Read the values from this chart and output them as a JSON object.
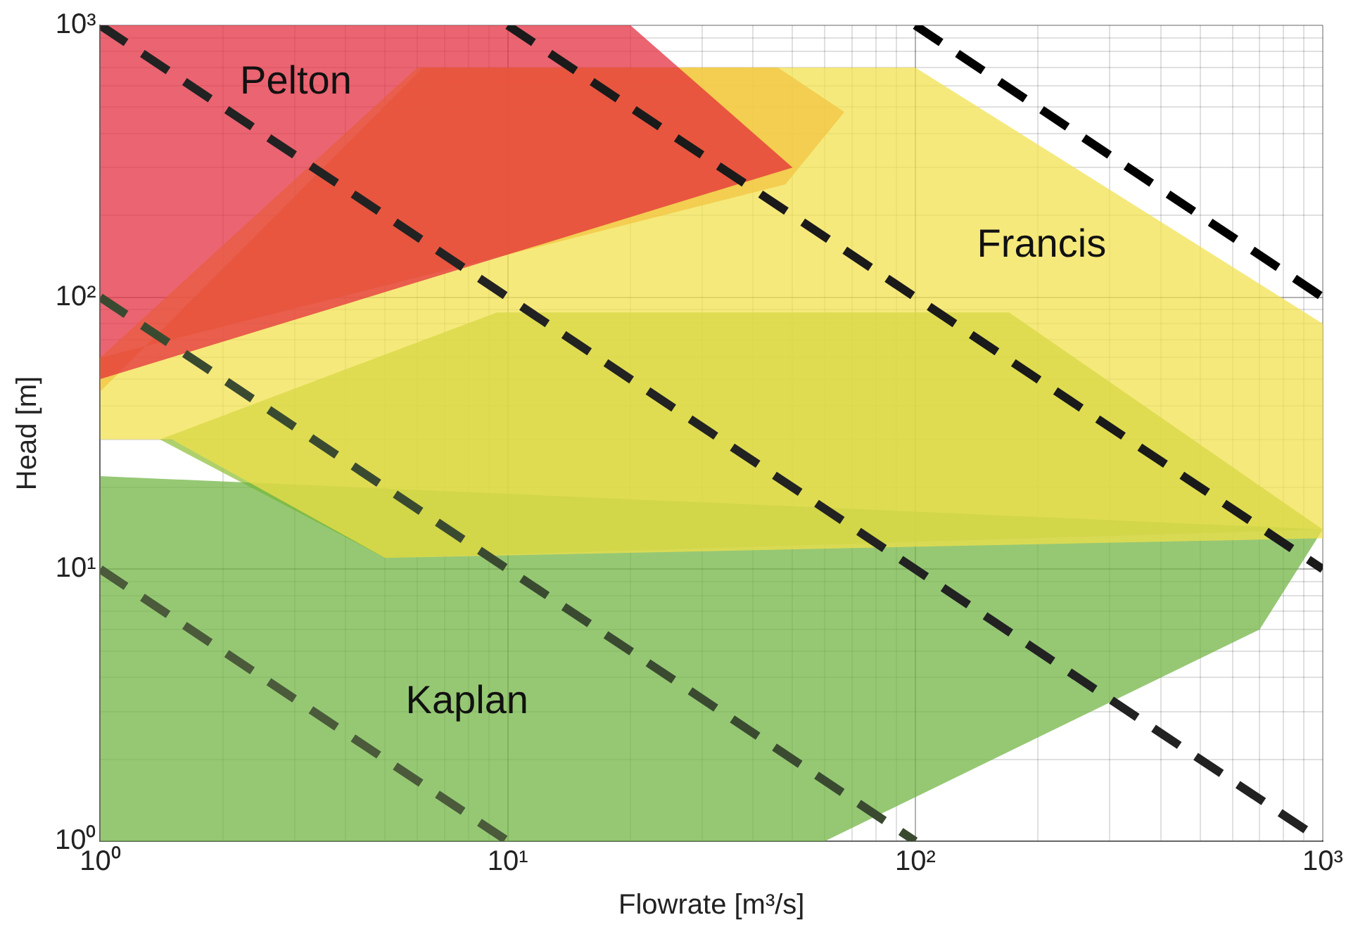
{
  "chart_data": {
    "type": "area",
    "xlabel": "Flowrate [m³/s]",
    "ylabel": "Head [m]",
    "log": "xy",
    "grid": true,
    "line_style": "dashed",
    "marker": "none",
    "xlim": [
      1,
      1000
    ],
    "ylim": [
      1,
      1000
    ],
    "xticks": [
      {
        "value": 1,
        "label": "10⁰"
      },
      {
        "value": 2,
        "label": null
      },
      {
        "value": 3,
        "label": null
      },
      {
        "value": 4,
        "label": null
      },
      {
        "value": 5,
        "label": null
      },
      {
        "value": 6,
        "label": null
      },
      {
        "value": 7,
        "label": null
      },
      {
        "value": 8,
        "label": null
      },
      {
        "value": 9,
        "label": null
      },
      {
        "value": 10,
        "label": "10¹"
      },
      {
        "value": 20,
        "label": null
      },
      {
        "value": 30,
        "label": null
      },
      {
        "value": 40,
        "label": null
      },
      {
        "value": 50,
        "label": null
      },
      {
        "value": 60,
        "label": null
      },
      {
        "value": 70,
        "label": null
      },
      {
        "value": 80,
        "label": null
      },
      {
        "value": 90,
        "label": null
      },
      {
        "value": 100,
        "label": "10²"
      },
      {
        "value": 200,
        "label": null
      },
      {
        "value": 300,
        "label": null
      },
      {
        "value": 400,
        "label": null
      },
      {
        "value": 500,
        "label": null
      },
      {
        "value": 600,
        "label": null
      },
      {
        "value": 700,
        "label": null
      },
      {
        "value": 800,
        "label": null
      },
      {
        "value": 900,
        "label": null
      },
      {
        "value": 1000,
        "label": "10³"
      }
    ],
    "yticks": [
      {
        "value": 1,
        "label": "10⁰"
      },
      {
        "value": 2,
        "label": null
      },
      {
        "value": 3,
        "label": null
      },
      {
        "value": 4,
        "label": null
      },
      {
        "value": 5,
        "label": null
      },
      {
        "value": 6,
        "label": null
      },
      {
        "value": 7,
        "label": null
      },
      {
        "value": 8,
        "label": null
      },
      {
        "value": 9,
        "label": null
      },
      {
        "value": 10,
        "label": "10¹"
      },
      {
        "value": 20,
        "label": null
      },
      {
        "value": 30,
        "label": null
      },
      {
        "value": 40,
        "label": null
      },
      {
        "value": 50,
        "label": null
      },
      {
        "value": 60,
        "label": null
      },
      {
        "value": 70,
        "label": null
      },
      {
        "value": 80,
        "label": null
      },
      {
        "value": 90,
        "label": null
      },
      {
        "value": 100,
        "label": "10²"
      },
      {
        "value": 200,
        "label": null
      },
      {
        "value": 300,
        "label": null
      },
      {
        "value": 400,
        "label": null
      },
      {
        "value": 500,
        "label": null
      },
      {
        "value": 600,
        "label": null
      },
      {
        "value": 700,
        "label": null
      },
      {
        "value": 800,
        "label": null
      },
      {
        "value": 900,
        "label": null
      },
      {
        "value": 1000,
        "label": "10³"
      }
    ],
    "series": [
      {
        "name": "Pelton",
        "color": "#e3283a",
        "x": [
          1,
          20,
          50,
          1,
          1
        ],
        "values": [
          1000,
          1000,
          300,
          50,
          1000
        ]
      },
      {
        "name": "Francis",
        "color": "#f2e048",
        "x": [
          1,
          6,
          100,
          1000,
          1000,
          5,
          1.5,
          1,
          1
        ],
        "values": [
          60,
          700,
          700,
          80,
          13,
          11,
          30,
          30,
          60
        ]
      },
      {
        "name": "Kaplan",
        "color": "#6db33f",
        "x": [
          1,
          1,
          1000,
          700,
          60,
          1
        ],
        "values": [
          1,
          22,
          14,
          6,
          1,
          1
        ]
      },
      {
        "color": "#ee7a2c",
        "x": [
          1,
          6.2,
          46,
          67,
          48,
          1,
          1
        ],
        "values": [
          45,
          700,
          700,
          480,
          260,
          60,
          45
        ]
      },
      {
        "color": "#8fbf36",
        "x": [
          1.4,
          9.4,
          170,
          1000,
          5,
          1.4
        ],
        "values": [
          30,
          88,
          88,
          14,
          11,
          30
        ]
      },
      {
        "type": "line",
        "color": "#4a5a3a",
        "x": [
          1,
          2,
          5,
          10
        ],
        "values": [
          10,
          5,
          2,
          1
        ]
      },
      {
        "type": "line",
        "color": "#3a4a30",
        "x": [
          1,
          10,
          100
        ],
        "values": [
          100,
          10,
          1
        ]
      },
      {
        "type": "line",
        "color": "#222222",
        "x": [
          1,
          10,
          100,
          1000
        ],
        "values": [
          1000,
          100,
          10,
          1
        ]
      },
      {
        "type": "line",
        "color": "#1a1a1a",
        "x": [
          10,
          100,
          1000
        ],
        "values": [
          1000,
          100,
          10
        ]
      },
      {
        "type": "line",
        "color": "#000000",
        "x": [
          100,
          300,
          1000
        ],
        "values": [
          1000,
          333,
          100
        ]
      }
    ]
  }
}
